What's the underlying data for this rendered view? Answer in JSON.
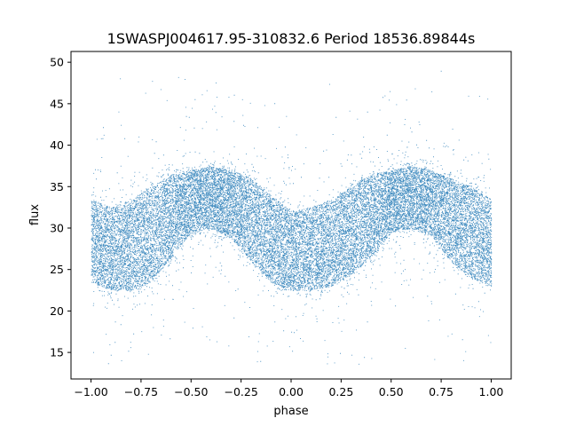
{
  "chart_data": {
    "type": "scatter",
    "title": "1SWASPJ004617.95-310832.6 Period 18536.89844s",
    "xlabel": "phase",
    "ylabel": "flux",
    "xlim": [
      -1.1,
      1.1
    ],
    "ylim": [
      11.8,
      51.3
    ],
    "xticks": [
      -1.0,
      -0.75,
      -0.5,
      -0.25,
      0.0,
      0.25,
      0.5,
      0.75,
      1.0
    ],
    "xtick_labels": [
      "−1.00",
      "−0.75",
      "−0.50",
      "−0.25",
      "0.00",
      "0.25",
      "0.50",
      "0.75",
      "1.00"
    ],
    "yticks": [
      15,
      20,
      25,
      30,
      35,
      40,
      45,
      50
    ],
    "ytick_labels": [
      "15",
      "20",
      "25",
      "30",
      "35",
      "40",
      "45",
      "50"
    ],
    "grid": false,
    "legend": "none",
    "marker_color": "#1f77b4",
    "data_range": {
      "x": [
        -1.0,
        1.0
      ],
      "y": [
        13.5,
        49.5
      ]
    },
    "band_profile": {
      "x": [
        -1.0,
        -0.9,
        -0.8,
        -0.7,
        -0.6,
        -0.5,
        -0.4,
        -0.3,
        -0.2,
        -0.1,
        0.0,
        0.1,
        0.2,
        0.3,
        0.4,
        0.5,
        0.6,
        0.7,
        0.8,
        0.9,
        1.0
      ],
      "median": [
        28.5,
        28.0,
        28.3,
        29.5,
        31.2,
        32.8,
        33.5,
        32.8,
        31.0,
        28.8,
        27.0,
        27.2,
        28.2,
        29.5,
        31.2,
        32.8,
        33.5,
        32.8,
        31.0,
        29.5,
        28.5
      ],
      "lower": [
        23.5,
        22.5,
        22.5,
        23.5,
        26.5,
        29.5,
        30.0,
        28.8,
        26.0,
        23.5,
        22.5,
        22.5,
        23.0,
        24.5,
        26.5,
        29.5,
        30.0,
        29.0,
        26.0,
        24.0,
        23.0
      ],
      "upper": [
        33.5,
        32.5,
        33.5,
        35.0,
        36.5,
        37.0,
        37.5,
        37.0,
        36.0,
        34.0,
        32.0,
        32.5,
        33.5,
        35.0,
        36.5,
        37.0,
        37.5,
        37.0,
        36.0,
        35.0,
        33.5
      ]
    }
  }
}
